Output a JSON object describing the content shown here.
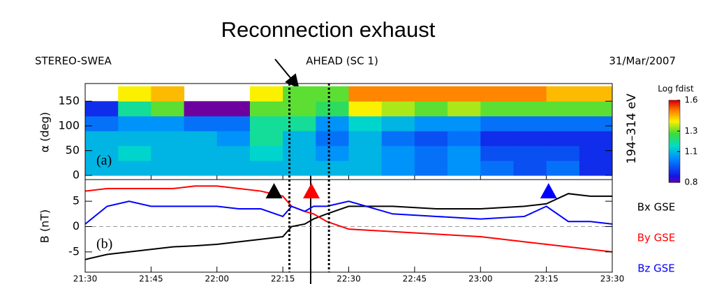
{
  "annotations": {
    "title": "Reconnection exhaust",
    "vlines": [
      46.5,
      55.5
    ]
  },
  "header": {
    "left": "STEREO-SWEA",
    "center": "AHEAD (SC 1)",
    "right": "31/Mar/2007"
  },
  "chart_data": [
    {
      "type": "heatmap",
      "panel_label": "(a)",
      "ylabel": "α (deg)",
      "right_label": "194–314 eV",
      "xbins": [
        0,
        7.5,
        15,
        22.5,
        30,
        37.5,
        45,
        52.5,
        60,
        67.5,
        75,
        82.5,
        90,
        97.5,
        105,
        112.5,
        120
      ],
      "ybins": [
        0,
        30,
        60,
        90,
        120,
        150,
        180
      ],
      "values": [
        [
          1.1,
          1.1,
          1.1,
          1.0,
          0.9,
          null
        ],
        [
          1.1,
          1.15,
          1.1,
          1.05,
          1.2,
          1.4
        ],
        [
          1.1,
          1.1,
          1.1,
          1.05,
          1.3,
          1.45
        ],
        [
          1.1,
          1.1,
          1.1,
          1.0,
          0.8,
          null
        ],
        [
          1.1,
          1.1,
          1.05,
          1.0,
          0.8,
          null
        ],
        [
          1.1,
          1.15,
          1.2,
          1.2,
          1.3,
          1.4
        ],
        [
          1.1,
          1.1,
          1.1,
          1.2,
          1.3,
          1.3
        ],
        [
          1.1,
          1.05,
          1.0,
          1.05,
          1.25,
          1.3
        ],
        [
          1.1,
          1.1,
          1.1,
          1.15,
          1.4,
          1.5
        ],
        [
          1.05,
          1.05,
          1.0,
          1.1,
          1.35,
          1.5
        ],
        [
          1.0,
          1.0,
          0.95,
          1.05,
          1.3,
          1.5
        ],
        [
          1.05,
          1.05,
          1.0,
          1.05,
          1.35,
          1.5
        ],
        [
          1.0,
          0.95,
          0.9,
          1.0,
          1.3,
          1.5
        ],
        [
          0.95,
          0.95,
          0.9,
          1.0,
          1.3,
          1.5
        ],
        [
          1.0,
          0.95,
          0.9,
          1.0,
          1.3,
          1.45
        ],
        [
          0.9,
          0.9,
          0.9,
          1.0,
          1.3,
          1.45
        ]
      ],
      "xlim": [
        0,
        120
      ],
      "ylim": [
        0,
        180
      ],
      "yticks": [
        0,
        50,
        100,
        150
      ],
      "colorbar": {
        "title": "Log fdist",
        "lim": [
          0.8,
          1.6
        ],
        "ticks": [
          0.8,
          1.1,
          1.3,
          1.6
        ]
      }
    },
    {
      "type": "line",
      "panel_label": "(b)",
      "ylabel": "B (nT)",
      "x": [
        0,
        5,
        10,
        15,
        20,
        25,
        30,
        35,
        40,
        45,
        47,
        50,
        52,
        55,
        60,
        70,
        80,
        90,
        100,
        105,
        110,
        115,
        120
      ],
      "series": [
        {
          "name": "Bx GSE",
          "color": "#000000",
          "values": [
            -6.5,
            -5.5,
            -5,
            -4.5,
            -4,
            -3.8,
            -3.5,
            -3,
            -2.5,
            -2,
            0,
            0.5,
            1.5,
            2.5,
            4,
            4,
            3.5,
            3.5,
            4,
            4.5,
            6.5,
            6,
            6
          ]
        },
        {
          "name": "By GSE",
          "color": "#ff0000",
          "values": [
            7,
            7.5,
            7.5,
            7.5,
            7.5,
            8,
            8,
            7.5,
            7,
            6,
            4,
            3,
            2.5,
            1,
            -0.5,
            -1,
            -1.5,
            -2,
            -3,
            -3.5,
            -4,
            -4.5,
            -5
          ]
        },
        {
          "name": "Bz GSE",
          "color": "#0000ff",
          "values": [
            0.5,
            4,
            5,
            4,
            4,
            4,
            4,
            3.5,
            3.5,
            2,
            4,
            3,
            4,
            4,
            5,
            2.5,
            2,
            1.5,
            2,
            4,
            1,
            1,
            0.5
          ]
        }
      ],
      "xlim": [
        0,
        120
      ],
      "ylim": [
        -9,
        9
      ],
      "yticks": [
        -5,
        0,
        5
      ],
      "reference_line": 0,
      "xticks": [
        {
          "value": 0,
          "label": "21:30"
        },
        {
          "value": 15,
          "label": "21:45"
        },
        {
          "value": 30,
          "label": "22:00"
        },
        {
          "value": 45,
          "label": "22:15"
        },
        {
          "value": 60,
          "label": "22:30"
        },
        {
          "value": 75,
          "label": "22:45"
        },
        {
          "value": 90,
          "label": "23:00"
        },
        {
          "value": 105,
          "label": "23:15"
        },
        {
          "value": 120,
          "label": "23:30"
        }
      ],
      "event_markers": [
        {
          "x": 43,
          "color": "#000000"
        },
        {
          "x": 51.5,
          "color": "#ff0000"
        },
        {
          "x": 105.5,
          "color": "#0000ff"
        }
      ]
    }
  ]
}
